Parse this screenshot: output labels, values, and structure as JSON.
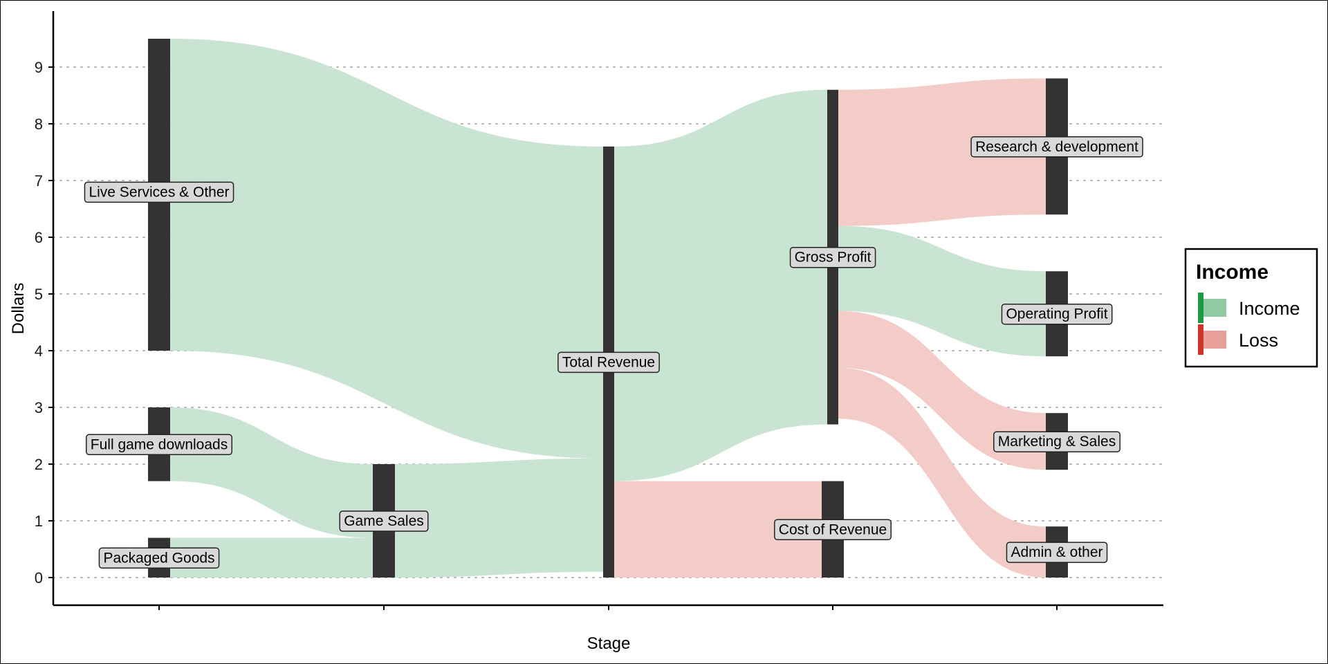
{
  "chart_data": {
    "type": "sankey",
    "xlabel": "Stage",
    "ylabel": "Dollars",
    "ylim": [
      -0.45,
      10
    ],
    "yticks": [
      0,
      1,
      2,
      3,
      4,
      5,
      6,
      7,
      8,
      9
    ],
    "grid": "horizontal dotted",
    "legend": {
      "title": "Income",
      "position": "right",
      "entries": [
        {
          "label": "Income",
          "color": "#8fcca4"
        },
        {
          "label": "Loss",
          "color": "#e8a09a"
        }
      ]
    },
    "colors": {
      "income": "#c6e3d0",
      "loss": "#f2c9c4",
      "node": "#333333",
      "label_bg": "#d9d9d9"
    },
    "nodes": [
      {
        "name": "Live Services & Other",
        "stage": 1,
        "y0": 4.0,
        "y1": 9.5,
        "label_y": 6.8
      },
      {
        "name": "Full game downloads",
        "stage": 1,
        "y0": 1.7,
        "y1": 3.0,
        "label_y": 2.35
      },
      {
        "name": "Packaged Goods",
        "stage": 1,
        "y0": 0.0,
        "y1": 0.7,
        "label_y": 0.35
      },
      {
        "name": "Game Sales",
        "stage": 2,
        "y0": 0.0,
        "y1": 2.0,
        "label_y": 1.0
      },
      {
        "name": "Total Revenue",
        "stage": 3,
        "y0": 0.0,
        "y1": 7.6,
        "label_y": 3.8
      },
      {
        "name": "Gross Profit",
        "stage": 4,
        "y0": 2.7,
        "y1": 8.6,
        "label_y": 5.65
      },
      {
        "name": "Cost of Revenue",
        "stage": 4,
        "y0": 0.0,
        "y1": 1.7,
        "label_y": 0.85
      },
      {
        "name": "Research & development",
        "stage": 5,
        "y0": 6.4,
        "y1": 8.8,
        "label_y": 7.6
      },
      {
        "name": "Operating Profit",
        "stage": 5,
        "y0": 3.9,
        "y1": 5.4,
        "label_y": 4.65
      },
      {
        "name": "Marketing & Sales",
        "stage": 5,
        "y0": 1.9,
        "y1": 2.9,
        "label_y": 2.4
      },
      {
        "name": "Admin & other",
        "stage": 5,
        "y0": 0.0,
        "y1": 0.9,
        "label_y": 0.45
      }
    ],
    "flows": [
      {
        "from": "Live Services & Other",
        "to": "Total Revenue",
        "value": 5.5,
        "type": "income"
      },
      {
        "from": "Full game downloads",
        "to": "Game Sales",
        "value": 1.3,
        "type": "income"
      },
      {
        "from": "Packaged Goods",
        "to": "Game Sales",
        "value": 0.7,
        "type": "income"
      },
      {
        "from": "Game Sales",
        "to": "Total Revenue",
        "value": 2.0,
        "type": "income"
      },
      {
        "from": "Total Revenue",
        "to": "Gross Profit",
        "value": 5.9,
        "type": "income"
      },
      {
        "from": "Total Revenue",
        "to": "Cost of Revenue",
        "value": 1.7,
        "type": "loss"
      },
      {
        "from": "Gross Profit",
        "to": "Research & development",
        "value": 2.4,
        "type": "loss"
      },
      {
        "from": "Gross Profit",
        "to": "Operating Profit",
        "value": 1.5,
        "type": "income"
      },
      {
        "from": "Gross Profit",
        "to": "Marketing & Sales",
        "value": 1.0,
        "type": "loss"
      },
      {
        "from": "Gross Profit",
        "to": "Admin & other",
        "value": 0.9,
        "type": "loss"
      }
    ]
  }
}
